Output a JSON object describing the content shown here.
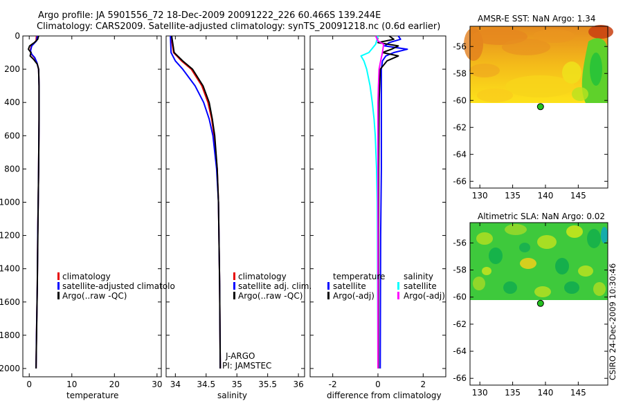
{
  "title_line1": "Argo profile: JA 5901556_72 18-Dec-2009 20091222_226 60.466S 139.244E",
  "title_line2": "Climatology: CARS2009. Satellite-adjusted climatology: synTS_20091218.nc (0.6d earlier)",
  "credit": "CSIRO 24-Dec-2009 10:30:46",
  "colors": {
    "red": "#e60000",
    "blue": "#0000ff",
    "black": "#000000",
    "cyan": "#00ffff",
    "magenta": "#ff00ff",
    "float": "#22c01e"
  },
  "chart_data": [
    {
      "id": "temperature",
      "type": "line",
      "xlabel": "temperature",
      "xlim": [
        -1.5,
        31
      ],
      "ylim": [
        0,
        2050
      ],
      "xticks": [
        0,
        10,
        20,
        30
      ],
      "yticks": [
        0,
        200,
        400,
        600,
        800,
        1000,
        1200,
        1400,
        1600,
        1800,
        2000
      ],
      "legend": [
        "climatology",
        "satellite-adjusted climatology",
        "Argo(..raw -QC)"
      ],
      "legend_display": [
        "climatology",
        "satellite-adjusted climatolo",
        "Argo(..raw -QC)"
      ],
      "legend_position": "lower-right",
      "series": [
        {
          "name": "climatology",
          "color": "red",
          "y": [
            0,
            30,
            60,
            90,
            110,
            130,
            160,
            200,
            300,
            500,
            800,
            1000,
            1200,
            1500,
            1800,
            2000
          ],
          "x": [
            1.7,
            1.6,
            0.5,
            0.2,
            0.5,
            1.2,
            1.8,
            2.2,
            2.3,
            2.3,
            2.2,
            2.1,
            2.0,
            1.9,
            1.7,
            1.6
          ]
        },
        {
          "name": "satellite-adjusted climatology",
          "color": "blue",
          "y": [
            0,
            30,
            60,
            90,
            110,
            130,
            160,
            200,
            300,
            500,
            800,
            1000,
            1200,
            1500,
            1800,
            2000
          ],
          "x": [
            1.9,
            1.7,
            0.6,
            0.3,
            0.6,
            1.3,
            1.8,
            2.2,
            2.3,
            2.3,
            2.2,
            2.1,
            2.0,
            1.9,
            1.7,
            1.6
          ]
        },
        {
          "name": "Argo(..raw -QC)",
          "color": "black",
          "y": [
            0,
            20,
            40,
            60,
            80,
            100,
            120,
            140,
            170,
            200,
            300,
            500,
            800,
            1000,
            1500,
            2000
          ],
          "x": [
            2.2,
            2.0,
            1.2,
            0.1,
            -0.2,
            0.4,
            0.2,
            1.0,
            1.9,
            2.2,
            2.3,
            2.3,
            2.2,
            2.1,
            1.9,
            1.6
          ]
        }
      ]
    },
    {
      "id": "salinity",
      "type": "line",
      "xlabel": "salinity",
      "xlim": [
        33.85,
        36.1
      ],
      "ylim": [
        0,
        2050
      ],
      "xticks": [
        34,
        34.5,
        35,
        35.5,
        36
      ],
      "yticks": [
        0,
        200,
        400,
        600,
        800,
        1000,
        1200,
        1400,
        1600,
        1800,
        2000
      ],
      "legend": [
        "climatology",
        "satellite adj. clim.",
        "Argo(..raw -QC)"
      ],
      "legend_position": "lower-right",
      "annotations": [
        "J-ARGO",
        "PI: JAMSTEC"
      ],
      "series": [
        {
          "name": "climatology",
          "color": "red",
          "y": [
            0,
            100,
            150,
            200,
            300,
            400,
            500,
            600,
            800,
            1000,
            1500,
            2000
          ],
          "x": [
            33.93,
            33.97,
            34.1,
            34.26,
            34.43,
            34.53,
            34.59,
            34.63,
            34.68,
            34.7,
            34.72,
            34.73
          ]
        },
        {
          "name": "satellite adj. clim.",
          "color": "blue",
          "y": [
            0,
            100,
            150,
            200,
            300,
            400,
            500,
            600,
            800,
            1000,
            1500,
            2000
          ],
          "x": [
            33.92,
            33.93,
            34.0,
            34.12,
            34.32,
            34.46,
            34.55,
            34.61,
            34.67,
            34.7,
            34.72,
            34.73
          ]
        },
        {
          "name": "Argo(..raw -QC)",
          "color": "black",
          "y": [
            0,
            100,
            150,
            200,
            300,
            400,
            500,
            600,
            800,
            1000,
            1500,
            2000
          ],
          "x": [
            33.94,
            33.98,
            34.12,
            34.28,
            34.45,
            34.55,
            34.6,
            34.64,
            34.68,
            34.7,
            34.72,
            34.73
          ]
        }
      ]
    },
    {
      "id": "difference",
      "type": "line",
      "xlabel": "difference from climatology",
      "xlim": [
        -3.0,
        3.0
      ],
      "ylim": [
        0,
        2050
      ],
      "xticks": [
        -2,
        0,
        2
      ],
      "yticks": [
        0,
        200,
        400,
        600,
        800,
        1000,
        1200,
        1400,
        1600,
        1800,
        2000
      ],
      "legend_groups": [
        {
          "title": "temperature",
          "items": [
            "satellite",
            "Argo(-adj)"
          ]
        },
        {
          "title": "salinity",
          "items": [
            "satellite",
            "Argo(-adj)"
          ]
        }
      ],
      "legend_position": "lower-center",
      "series": [
        {
          "name": "temperature satellite",
          "color": "blue",
          "y": [
            0,
            20,
            40,
            60,
            80,
            100,
            120,
            150,
            200,
            400,
            800,
            1200,
            2000
          ],
          "x": [
            0.9,
            1.0,
            0.5,
            0.3,
            1.3,
            0.7,
            0.35,
            0.2,
            0.15,
            0.15,
            0.15,
            0.12,
            0.1
          ]
        },
        {
          "name": "temperature Argo(-adj)",
          "color": "black",
          "y": [
            0,
            20,
            40,
            60,
            80,
            100,
            120,
            150,
            200,
            400,
            800,
            1200,
            2000
          ],
          "x": [
            0.5,
            0.7,
            0.0,
            0.9,
            0.6,
            0.2,
            0.9,
            0.4,
            0.1,
            0.05,
            0.03,
            0.02,
            0.02
          ]
        },
        {
          "name": "salinity satellite",
          "color": "cyan",
          "y": [
            0,
            50,
            100,
            120,
            150,
            200,
            300,
            400,
            500,
            600,
            800,
            1000,
            1200,
            2000
          ],
          "x": [
            0.0,
            -0.1,
            -0.4,
            -0.75,
            -0.62,
            -0.5,
            -0.35,
            -0.25,
            -0.17,
            -0.12,
            -0.06,
            -0.03,
            -0.02,
            0.0
          ]
        },
        {
          "name": "salinity Argo(-adj)",
          "color": "magenta",
          "y": [
            0,
            30,
            50,
            100,
            150,
            200,
            300,
            400,
            600,
            800,
            1000,
            1400,
            2000
          ],
          "x": [
            -0.1,
            0.0,
            0.25,
            0.2,
            0.12,
            0.05,
            0.02,
            0.0,
            0.0,
            0.0,
            0.0,
            0.0,
            0.0
          ]
        }
      ]
    },
    {
      "id": "sst_map",
      "type": "heatmap",
      "title": "AMSR-E SST: NaN  Argo: 1.34",
      "xlim": [
        128.5,
        149.5
      ],
      "ylim": [
        -66.5,
        -54.5
      ],
      "xticks": [
        130,
        135,
        140,
        145
      ],
      "yticks": [
        -56,
        -58,
        -60,
        -62,
        -64,
        -66
      ],
      "data_ylim": [
        -60.1,
        -54.5
      ],
      "float_position": {
        "lon": 139.244,
        "lat": -60.466
      }
    },
    {
      "id": "sla_map",
      "type": "heatmap",
      "title": "Altimetric SLA: NaN  Argo: 0.02",
      "xlim": [
        128.5,
        149.5
      ],
      "ylim": [
        -66.5,
        -54.5
      ],
      "xticks": [
        130,
        135,
        140,
        145
      ],
      "yticks": [
        -56,
        -58,
        -60,
        -62,
        -64,
        -66
      ],
      "data_ylim": [
        -60.1,
        -54.5
      ],
      "float_position": {
        "lon": 139.244,
        "lat": -60.466
      }
    }
  ]
}
